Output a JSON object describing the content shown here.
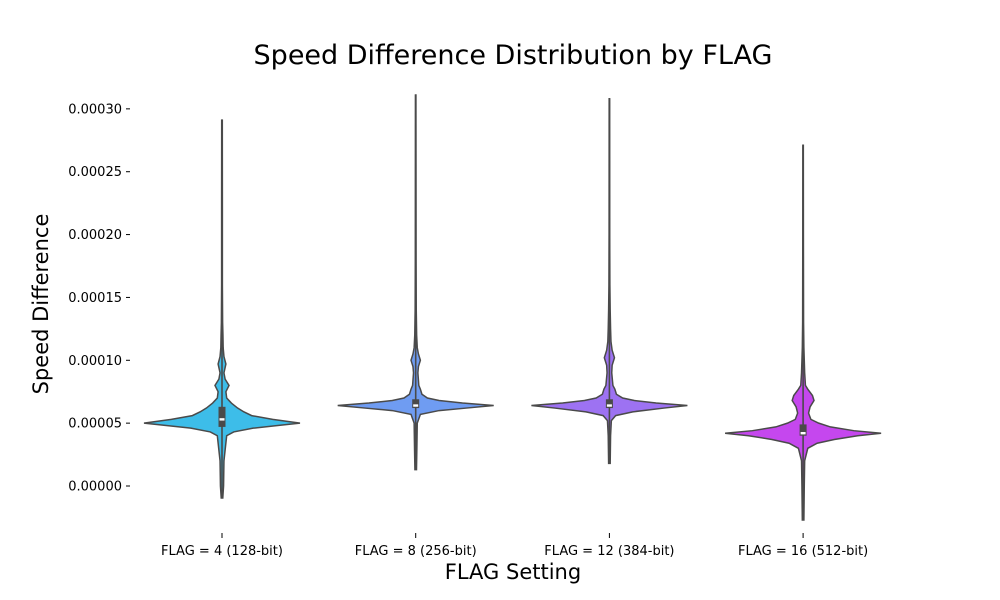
{
  "chart_data": {
    "type": "violin",
    "title": "Speed Difference Distribution by FLAG",
    "xlabel": "FLAG Setting",
    "ylabel": "Speed Difference",
    "ylim": [
      -3.5e-05,
      0.000315
    ],
    "yticks": [
      0.0,
      5e-05,
      0.0001,
      0.00015,
      0.0002,
      0.00025,
      0.0003
    ],
    "ytick_labels": [
      "0.00000",
      "0.00005",
      "0.00010",
      "0.00015",
      "0.00020",
      "0.00025",
      "0.00030"
    ],
    "grid": false,
    "categories": [
      "FLAG = 4 (128-bit)",
      "FLAG = 8 (256-bit)",
      "FLAG = 12 (384-bit)",
      "FLAG = 16 (512-bit)"
    ],
    "colors": [
      "#3dbde9",
      "#6f9cf2",
      "#9d72f2",
      "#c547ee"
    ],
    "series": [
      {
        "min": -9.5e-06,
        "max": 0.000291,
        "q1": 4.7e-05,
        "median": 5.3e-05,
        "q3": 6.3e-05,
        "density": [
          [
            -9.5e-06,
            0.01
          ],
          [
            0.0,
            0.02
          ],
          [
            2e-05,
            0.025
          ],
          [
            4e-05,
            0.06
          ],
          [
            4.3e-05,
            0.15
          ],
          [
            4.6e-05,
            0.4
          ],
          [
            4.8e-05,
            0.7
          ],
          [
            5e-05,
            1.0
          ],
          [
            5.3e-05,
            0.65
          ],
          [
            5.6e-05,
            0.38
          ],
          [
            5.9e-05,
            0.28
          ],
          [
            6.2e-05,
            0.2
          ],
          [
            6.6e-05,
            0.12
          ],
          [
            7e-05,
            0.06
          ],
          [
            7.5e-05,
            0.05
          ],
          [
            8e-05,
            0.09
          ],
          [
            8.5e-05,
            0.04
          ],
          [
            9e-05,
            0.025
          ],
          [
            9.7e-05,
            0.05
          ],
          [
            0.000103,
            0.025
          ],
          [
            0.00011,
            0.015
          ],
          [
            0.00012,
            0.012
          ],
          [
            0.00013,
            0.008
          ],
          [
            0.00016,
            0.005
          ],
          [
            0.00022,
            0.005
          ],
          [
            0.000291,
            0.004
          ]
        ]
      },
      {
        "min": 1.3e-05,
        "max": 0.000311,
        "q1": 6.2e-05,
        "median": 6.4e-05,
        "q3": 6.9e-05,
        "density": [
          [
            1.3e-05,
            0.01
          ],
          [
            3e-05,
            0.015
          ],
          [
            5e-05,
            0.02
          ],
          [
            5.7e-05,
            0.06
          ],
          [
            6e-05,
            0.3
          ],
          [
            6.2e-05,
            0.65
          ],
          [
            6.4e-05,
            1.0
          ],
          [
            6.6e-05,
            0.6
          ],
          [
            6.8e-05,
            0.3
          ],
          [
            7e-05,
            0.15
          ],
          [
            7.3e-05,
            0.08
          ],
          [
            7.7e-05,
            0.06
          ],
          [
            8e-05,
            0.04
          ],
          [
            9e-05,
            0.028
          ],
          [
            9.5e-05,
            0.035
          ],
          [
            0.0001,
            0.06
          ],
          [
            0.000105,
            0.035
          ],
          [
            0.00011,
            0.02
          ],
          [
            0.00012,
            0.012
          ],
          [
            0.00014,
            0.007
          ],
          [
            0.00018,
            0.005
          ],
          [
            0.00025,
            0.004
          ],
          [
            0.000311,
            0.003
          ]
        ]
      },
      {
        "min": 1.8e-05,
        "max": 0.000308,
        "q1": 6.2e-05,
        "median": 6.4e-05,
        "q3": 6.9e-05,
        "density": [
          [
            1.8e-05,
            0.01
          ],
          [
            4e-05,
            0.015
          ],
          [
            5.2e-05,
            0.025
          ],
          [
            5.6e-05,
            0.08
          ],
          [
            5.9e-05,
            0.3
          ],
          [
            6.2e-05,
            0.7
          ],
          [
            6.4e-05,
            1.0
          ],
          [
            6.6e-05,
            0.6
          ],
          [
            6.8e-05,
            0.32
          ],
          [
            7e-05,
            0.17
          ],
          [
            7.3e-05,
            0.09
          ],
          [
            7.7e-05,
            0.07
          ],
          [
            8e-05,
            0.045
          ],
          [
            9e-05,
            0.03
          ],
          [
            9.6e-05,
            0.035
          ],
          [
            0.000102,
            0.065
          ],
          [
            0.000108,
            0.035
          ],
          [
            0.000115,
            0.02
          ],
          [
            0.000125,
            0.015
          ],
          [
            0.00014,
            0.01
          ],
          [
            0.00016,
            0.006
          ],
          [
            0.0002,
            0.004
          ],
          [
            0.000308,
            0.003
          ]
        ]
      },
      {
        "min": -2.7e-05,
        "max": 0.000271,
        "q1": 4e-05,
        "median": 4.2e-05,
        "q3": 4.9e-05,
        "density": [
          [
            -2.7e-05,
            0.01
          ],
          [
            0.0,
            0.015
          ],
          [
            2e-05,
            0.02
          ],
          [
            3e-05,
            0.06
          ],
          [
            3.4e-05,
            0.18
          ],
          [
            3.7e-05,
            0.4
          ],
          [
            4e-05,
            0.7
          ],
          [
            4.2e-05,
            1.0
          ],
          [
            4.4e-05,
            0.65
          ],
          [
            4.7e-05,
            0.35
          ],
          [
            5e-05,
            0.2
          ],
          [
            5.3e-05,
            0.1
          ],
          [
            5.8e-05,
            0.07
          ],
          [
            6.3e-05,
            0.09
          ],
          [
            6.8e-05,
            0.14
          ],
          [
            7.2e-05,
            0.12
          ],
          [
            7.7e-05,
            0.06
          ],
          [
            8e-05,
            0.03
          ],
          [
            9e-05,
            0.02
          ],
          [
            0.0001,
            0.015
          ],
          [
            0.00011,
            0.01
          ],
          [
            0.00013,
            0.006
          ],
          [
            0.0002,
            0.004
          ],
          [
            0.000271,
            0.003
          ]
        ]
      }
    ]
  }
}
